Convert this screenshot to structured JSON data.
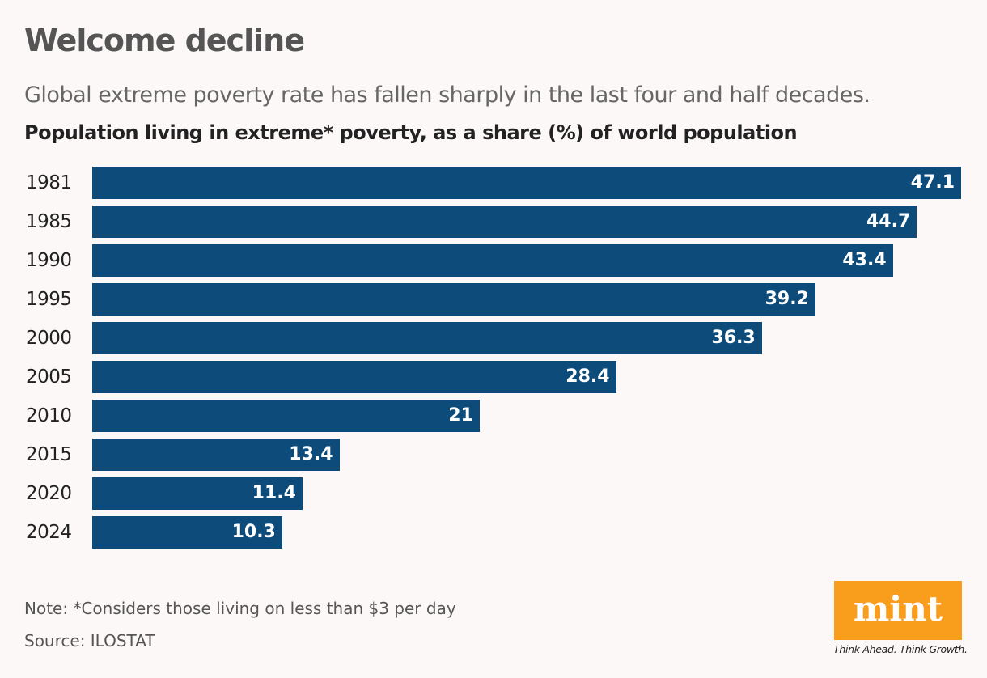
{
  "header": {
    "title": "Welcome decline",
    "subtitle": "Global extreme poverty rate has fallen sharply in the last four and half decades."
  },
  "chart_data": {
    "type": "bar",
    "orientation": "horizontal",
    "title": "Population living in extreme* poverty, as a share (%) of world population",
    "categories": [
      "1981",
      "1985",
      "1990",
      "1995",
      "2000",
      "2005",
      "2010",
      "2015",
      "2020",
      "2024"
    ],
    "values": [
      47.1,
      44.7,
      43.4,
      39.2,
      36.3,
      28.4,
      21,
      13.4,
      11.4,
      10.3
    ],
    "xlim": [
      0,
      47.1
    ],
    "grid": false,
    "bar_color": "#0c4b7a",
    "data_labels": true
  },
  "footer": {
    "note": "Note: *Considers those living on less than $3 per day",
    "source": "Source: ILOSTAT"
  },
  "logo": {
    "text": "mint",
    "tagline": "Think Ahead. Think Growth.",
    "color": "#f99d1c"
  }
}
